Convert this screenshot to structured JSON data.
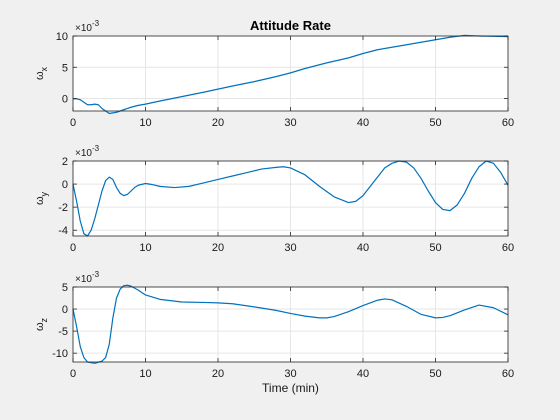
{
  "window": {
    "background": "#f0f0f0",
    "axes_background": "#ffffff",
    "line_color": "#0072bd"
  },
  "chart_data": [
    {
      "type": "line",
      "title": "Attitude Rate",
      "ylabel": "ωx",
      "ylabel_symbol": "ω",
      "ylabel_sub": "x",
      "xlabel": "",
      "exponent_label": "×10",
      "exponent_power": "-3",
      "xlim": [
        0,
        60
      ],
      "ylim": [
        -2,
        10
      ],
      "xticks": [
        0,
        10,
        20,
        30,
        40,
        50,
        60
      ],
      "yticks": [
        0,
        5,
        10
      ],
      "grid": true,
      "series": [
        {
          "values_scale": "1e-3",
          "x": [
            0,
            0.5,
            1,
            1.5,
            2,
            2.5,
            3,
            3.5,
            4,
            4.5,
            5,
            5.5,
            6,
            7,
            8,
            9,
            10,
            12,
            15,
            18,
            20,
            22,
            25,
            28,
            30,
            32,
            35,
            38,
            40,
            42,
            45,
            48,
            50,
            52,
            54,
            55,
            56,
            58,
            60
          ],
          "y": [
            -0.05,
            -0.05,
            -0.2,
            -0.6,
            -1.0,
            -1.0,
            -0.9,
            -1.0,
            -1.6,
            -2.0,
            -2.4,
            -2.3,
            -2.2,
            -1.8,
            -1.4,
            -1.1,
            -0.9,
            -0.4,
            0.3,
            1.0,
            1.5,
            2.0,
            2.7,
            3.5,
            4.1,
            4.8,
            5.7,
            6.5,
            7.2,
            7.8,
            8.4,
            9.0,
            9.4,
            9.8,
            10.1,
            10.05,
            10.0,
            9.95,
            9.9
          ]
        }
      ]
    },
    {
      "type": "line",
      "title": "",
      "ylabel": "ωy",
      "ylabel_symbol": "ω",
      "ylabel_sub": "y",
      "xlabel": "",
      "exponent_label": "×10",
      "exponent_power": "-3",
      "xlim": [
        0,
        60
      ],
      "ylim": [
        -4.5,
        2
      ],
      "xticks": [
        0,
        10,
        20,
        30,
        40,
        50,
        60
      ],
      "yticks": [
        -4,
        -2,
        0,
        2
      ],
      "grid": true,
      "series": [
        {
          "values_scale": "1e-3",
          "x": [
            0,
            0.5,
            1,
            1.5,
            2,
            2.5,
            3,
            3.5,
            4,
            4.5,
            5,
            5.5,
            6,
            6.5,
            7,
            7.5,
            8,
            8.5,
            9,
            10,
            11,
            12,
            14,
            16,
            18,
            20,
            22,
            24,
            26,
            28,
            29,
            30,
            32,
            34,
            36,
            38,
            39,
            40,
            41,
            42,
            43,
            44,
            45,
            46,
            47,
            48,
            49,
            50,
            51,
            52,
            53,
            54,
            55,
            56,
            57,
            58,
            59,
            60
          ],
          "y": [
            0,
            -1.5,
            -3.2,
            -4.3,
            -4.5,
            -4.0,
            -3.0,
            -1.8,
            -0.6,
            0.3,
            0.6,
            0.4,
            -0.3,
            -0.8,
            -1.0,
            -0.9,
            -0.6,
            -0.3,
            -0.1,
            0.05,
            -0.05,
            -0.2,
            -0.3,
            -0.2,
            0.1,
            0.4,
            0.7,
            1.0,
            1.3,
            1.45,
            1.5,
            1.4,
            0.8,
            -0.2,
            -1.1,
            -1.6,
            -1.5,
            -1.0,
            -0.2,
            0.6,
            1.4,
            1.8,
            2.0,
            1.9,
            1.4,
            0.5,
            -0.6,
            -1.6,
            -2.2,
            -2.3,
            -1.8,
            -0.8,
            0.5,
            1.5,
            2.0,
            1.8,
            1.0,
            -0.1
          ]
        }
      ]
    },
    {
      "type": "line",
      "title": "",
      "ylabel": "ωz",
      "ylabel_symbol": "ω",
      "ylabel_sub": "z",
      "xlabel": "Time (min)",
      "exponent_label": "×10",
      "exponent_power": "-3",
      "xlim": [
        0,
        60
      ],
      "ylim": [
        -12,
        5
      ],
      "xticks": [
        0,
        10,
        20,
        30,
        40,
        50,
        60
      ],
      "yticks": [
        -10,
        -5,
        0,
        5
      ],
      "grid": true,
      "series": [
        {
          "values_scale": "1e-3",
          "x": [
            0,
            0.5,
            1,
            1.5,
            2,
            3,
            4,
            4.5,
            5,
            5.5,
            6,
            6.5,
            7,
            7.5,
            8,
            9,
            10,
            12,
            15,
            18,
            20,
            22,
            25,
            28,
            30,
            32,
            34,
            35,
            36,
            38,
            40,
            42,
            43,
            44,
            46,
            48,
            50,
            51,
            52,
            54,
            56,
            58,
            60
          ],
          "y": [
            0,
            -4,
            -8.5,
            -11,
            -12,
            -12.3,
            -11.8,
            -11.0,
            -8.0,
            -2.0,
            2.5,
            4.5,
            5.3,
            5.4,
            5.2,
            4.3,
            3.2,
            2.2,
            1.6,
            1.5,
            1.4,
            1.2,
            0.5,
            -0.3,
            -1.0,
            -1.6,
            -2.0,
            -2.0,
            -1.7,
            -0.6,
            0.8,
            2.0,
            2.3,
            2.1,
            0.6,
            -1.2,
            -2.0,
            -1.9,
            -1.5,
            -0.2,
            0.9,
            0.3,
            -1.3
          ]
        }
      ]
    }
  ]
}
